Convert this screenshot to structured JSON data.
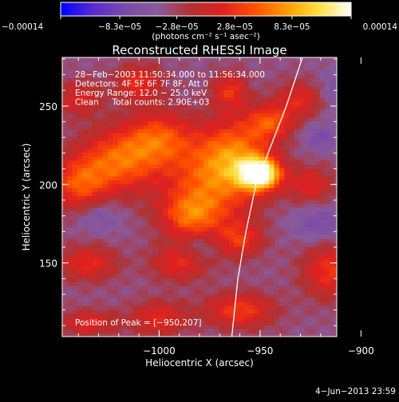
{
  "chart_data": {
    "type": "heatmap",
    "title": "Reconstructed RHESSI Image",
    "xlabel": "Heliocentric X (arcsec)",
    "ylabel": "Heliocentric Y (arcsec)",
    "xlim": [
      -1048,
      -912
    ],
    "ylim": [
      103,
      281
    ],
    "x_ticks": [
      {
        "value": -1000,
        "label": "−1000"
      },
      {
        "value": -950,
        "label": "−950"
      },
      {
        "value": -900,
        "label": "−900"
      }
    ],
    "y_ticks": [
      {
        "value": 150,
        "label": "150"
      },
      {
        "value": 200,
        "label": "200"
      },
      {
        "value": 250,
        "label": "250"
      }
    ],
    "colorbar": {
      "range": [
        -0.00014,
        0.00014
      ],
      "ticks": [
        {
          "value": -0.00014,
          "label": "−0.00014"
        },
        {
          "value": -8.3e-05,
          "label": "−8.3e−05"
        },
        {
          "value": -2.8e-05,
          "label": "−2.8e−05"
        },
        {
          "value": 2.8e-05,
          "label": "2.8e−05"
        },
        {
          "value": 8.3e-05,
          "label": "8.3e−05"
        },
        {
          "value": 0.00014,
          "label": "0.00014"
        }
      ],
      "unit_label": "(photons cm⁻² s⁻¹ asec⁻²)",
      "colors": [
        "#0000ff",
        "#5a2ad0",
        "#7a4aa8",
        "#8a5a9a",
        "#b23030",
        "#e02020",
        "#ff5000",
        "#ff9a00",
        "#ffe040",
        "#ffffff"
      ]
    },
    "info_lines": [
      "28−Feb−2003 11:50:34.000 to 11:56:34.000",
      "Detectors: 4F 5F 6F 7F 8F, Att 0",
      "Energy Range: 12.0 − 25.0 keV",
      "Clean     Total counts: 2.90E+03"
    ],
    "peak_label": "Position of Peak = [−950,207]",
    "peak": {
      "x": -950,
      "y": 207,
      "value": 0.00014
    },
    "limb_curve": [
      {
        "x": -929,
        "y": 281
      },
      {
        "x": -937,
        "y": 250
      },
      {
        "x": -946,
        "y": 220
      },
      {
        "x": -952,
        "y": 200
      },
      {
        "x": -957,
        "y": 170
      },
      {
        "x": -961,
        "y": 140
      },
      {
        "x": -964,
        "y": 103
      }
    ],
    "blobs": [
      {
        "x": -950,
        "y": 207,
        "sx": 7,
        "sy": 7,
        "a": 1.0
      },
      {
        "x": -962,
        "y": 220,
        "sx": 12,
        "sy": 16,
        "a": 0.45
      },
      {
        "x": -975,
        "y": 200,
        "sx": 16,
        "sy": 20,
        "a": 0.45
      },
      {
        "x": -1020,
        "y": 215,
        "sx": 14,
        "sy": 14,
        "a": 0.5
      },
      {
        "x": -1000,
        "y": 230,
        "sx": 12,
        "sy": 12,
        "a": 0.42
      },
      {
        "x": -1040,
        "y": 200,
        "sx": 10,
        "sy": 12,
        "a": 0.42
      },
      {
        "x": -985,
        "y": 180,
        "sx": 10,
        "sy": 10,
        "a": 0.38
      },
      {
        "x": -945,
        "y": 240,
        "sx": 8,
        "sy": 8,
        "a": 0.42
      },
      {
        "x": -930,
        "y": 255,
        "sx": 8,
        "sy": 8,
        "a": 0.32
      },
      {
        "x": -925,
        "y": 200,
        "sx": 8,
        "sy": 8,
        "a": 0.3
      },
      {
        "x": -960,
        "y": 165,
        "sx": 8,
        "sy": 8,
        "a": 0.34
      },
      {
        "x": -990,
        "y": 150,
        "sx": 10,
        "sy": 8,
        "a": 0.32
      },
      {
        "x": -1035,
        "y": 150,
        "sx": 10,
        "sy": 8,
        "a": 0.34
      },
      {
        "x": -960,
        "y": 120,
        "sx": 12,
        "sy": 8,
        "a": 0.4
      },
      {
        "x": -915,
        "y": 145,
        "sx": 10,
        "sy": 12,
        "a": 0.38
      },
      {
        "x": -1000,
        "y": 115,
        "sx": 10,
        "sy": 8,
        "a": 0.32
      },
      {
        "x": -1035,
        "y": 112,
        "sx": 10,
        "sy": 6,
        "a": 0.3
      },
      {
        "x": -1010,
        "y": 265,
        "sx": 8,
        "sy": 8,
        "a": 0.36
      },
      {
        "x": -1040,
        "y": 255,
        "sx": 8,
        "sy": 8,
        "a": 0.28
      },
      {
        "x": -965,
        "y": 260,
        "sx": 6,
        "sy": 8,
        "a": 0.36
      },
      {
        "x": -920,
        "y": 230,
        "sx": 6,
        "sy": 6,
        "a": -0.2
      },
      {
        "x": -905,
        "y": 260,
        "sx": 10,
        "sy": 10,
        "a": -0.24
      },
      {
        "x": -1030,
        "y": 180,
        "sx": 8,
        "sy": 8,
        "a": -0.18
      },
      {
        "x": -980,
        "y": 160,
        "sx": 6,
        "sy": 6,
        "a": -0.16
      },
      {
        "x": -920,
        "y": 175,
        "sx": 10,
        "sy": 8,
        "a": -0.2
      }
    ]
  },
  "footer": {
    "timestamp": "4−Jun−2013 23:59"
  }
}
